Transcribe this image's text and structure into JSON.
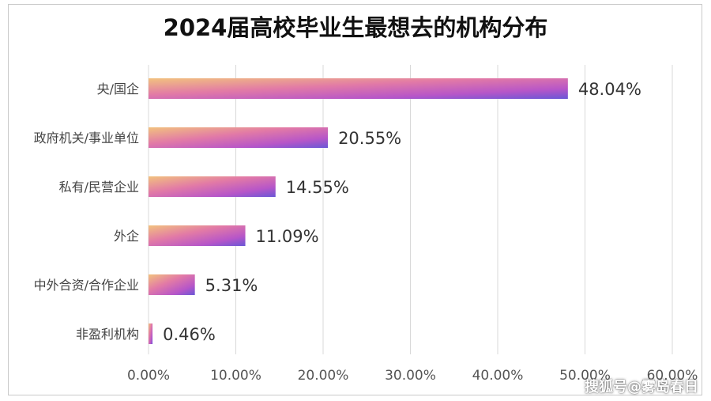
{
  "chart_data": {
    "type": "bar",
    "orientation": "horizontal",
    "title": "2024届高校毕业生最想去的机构分布",
    "categories": [
      "央/国企",
      "政府机关/事业单位",
      "私有/民营企业",
      "外企",
      "中外合资/合作企业",
      "非盈利机构"
    ],
    "values": [
      48.04,
      20.55,
      14.55,
      11.09,
      5.31,
      0.46
    ],
    "value_labels": [
      "48.04%",
      "20.55%",
      "14.55%",
      "11.09%",
      "5.31%",
      "0.46%"
    ],
    "xlim": [
      0,
      60
    ],
    "x_ticks": [
      0,
      10,
      20,
      30,
      40,
      50,
      60
    ],
    "x_tick_labels": [
      "0.00%",
      "10.00%",
      "20.00%",
      "30.00%",
      "40.00%",
      "50.00%",
      "60.00%"
    ],
    "grid": true,
    "legend": "none",
    "colors": {
      "bar_gradient": [
        "#f2c27e",
        "#e27aa6",
        "#b756c8",
        "#6a57d6"
      ],
      "grid": "#d9d9d9",
      "label": "#444444",
      "value_label": "#333333"
    }
  },
  "watermark": "搜狐号@雾岛春日"
}
